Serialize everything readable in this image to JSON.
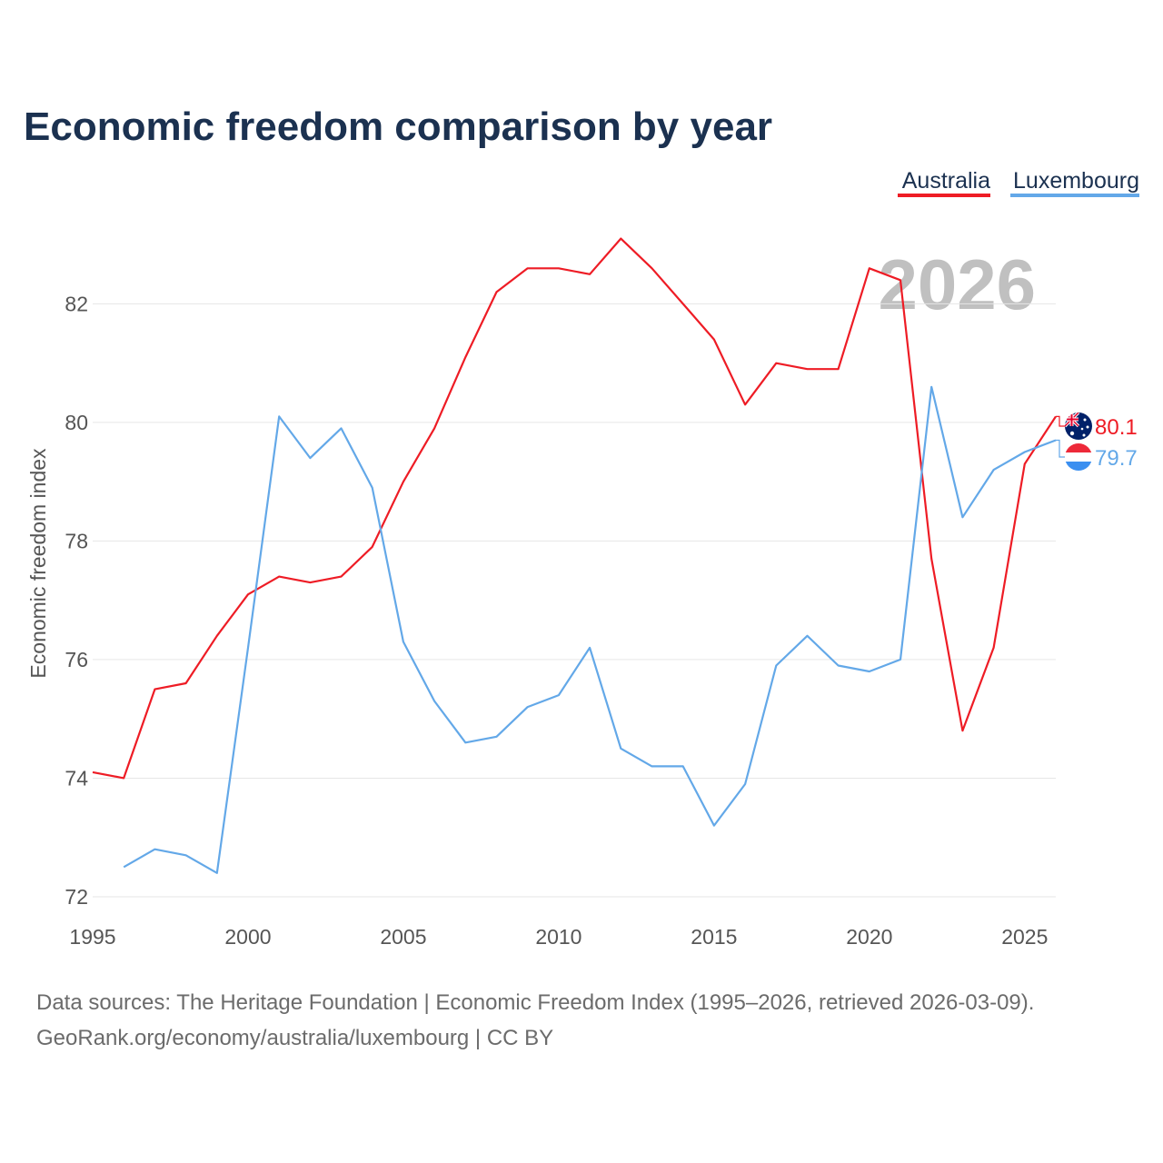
{
  "colors": {
    "title": "#1b3150",
    "grid": "#e6e6e6",
    "tick": "#555555",
    "year_watermark": "#c0c0c0",
    "source": "#6b6b6b"
  },
  "chart_data": {
    "type": "line",
    "title": "Economic freedom comparison by year",
    "xlabel": "",
    "ylabel": "Economic freedom index",
    "xlim": [
      1995,
      2026
    ],
    "ylim": [
      71.8,
      83.6
    ],
    "x_ticks": [
      1995,
      2000,
      2005,
      2010,
      2015,
      2020,
      2025
    ],
    "y_ticks": [
      72,
      74,
      76,
      78,
      80,
      82
    ],
    "year_label": "2026",
    "legend_position": "top-right",
    "series": [
      {
        "name": "Australia",
        "color": "#ee1c25",
        "flag_icon": "australia-flag-icon",
        "end_label": "80.1",
        "x": [
          1995,
          1996,
          1997,
          1998,
          1999,
          2000,
          2001,
          2002,
          2003,
          2004,
          2005,
          2006,
          2007,
          2008,
          2009,
          2010,
          2011,
          2012,
          2013,
          2014,
          2015,
          2016,
          2017,
          2018,
          2019,
          2020,
          2021,
          2022,
          2023,
          2024,
          2025,
          2026
        ],
        "values": [
          74.1,
          74.0,
          75.5,
          75.6,
          76.4,
          77.1,
          77.4,
          77.3,
          77.4,
          77.9,
          79.0,
          79.9,
          81.1,
          82.2,
          82.6,
          82.6,
          82.5,
          83.1,
          82.6,
          82.0,
          81.4,
          80.3,
          81.0,
          80.9,
          80.9,
          82.6,
          82.4,
          77.7,
          74.8,
          76.2,
          79.3,
          80.1
        ]
      },
      {
        "name": "Luxembourg",
        "color": "#63a8e8",
        "flag_icon": "luxembourg-flag-icon",
        "end_label": "79.7",
        "x": [
          1996,
          1997,
          1998,
          1999,
          2000,
          2001,
          2002,
          2003,
          2004,
          2005,
          2006,
          2007,
          2008,
          2009,
          2010,
          2011,
          2012,
          2013,
          2014,
          2015,
          2016,
          2017,
          2018,
          2019,
          2020,
          2021,
          2022,
          2023,
          2024,
          2025,
          2026
        ],
        "values": [
          72.5,
          72.8,
          72.7,
          72.4,
          76.2,
          80.1,
          79.4,
          79.9,
          78.9,
          76.3,
          75.3,
          74.6,
          74.7,
          75.2,
          75.4,
          76.2,
          74.5,
          74.2,
          74.2,
          73.2,
          73.9,
          75.9,
          76.4,
          75.9,
          75.8,
          76.0,
          80.6,
          78.4,
          79.2,
          79.5,
          79.7
        ]
      }
    ]
  },
  "source": {
    "line1": "Data sources: The Heritage Foundation | Economic Freedom Index (1995–2026, retrieved 2026-03-09).",
    "line2": "GeoRank.org/economy/australia/luxembourg | CC BY"
  }
}
